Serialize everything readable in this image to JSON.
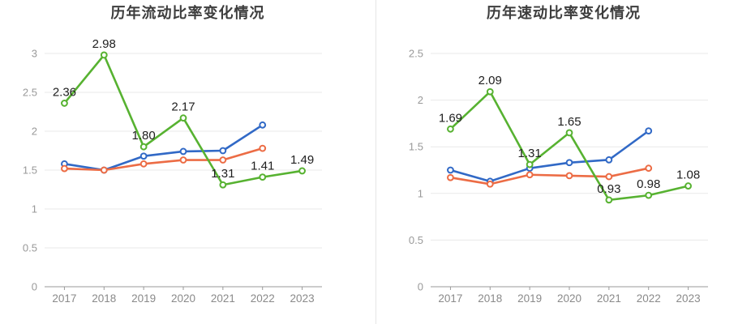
{
  "page": {
    "background": "#ffffff",
    "divider_color": "#e5e5e5"
  },
  "chart_data": [
    {
      "type": "line",
      "title": "历年流动比率变化情况",
      "categories": [
        "2017",
        "2018",
        "2019",
        "2020",
        "2021",
        "2022",
        "2023"
      ],
      "xlabel": "",
      "ylabel": "",
      "ylim": [
        0,
        3
      ],
      "yticks": [
        0,
        0.5,
        1,
        1.5,
        2,
        2.5,
        3
      ],
      "grid": true,
      "legend_position": "none",
      "series": [
        {
          "name": "blue-line",
          "color": "#3169c6",
          "values": [
            1.58,
            1.5,
            1.68,
            1.74,
            1.75,
            2.08,
            null
          ],
          "show_labels": false,
          "labels": []
        },
        {
          "name": "orange-line",
          "color": "#ec6c45",
          "values": [
            1.52,
            1.5,
            1.58,
            1.63,
            1.63,
            1.78,
            null
          ],
          "show_labels": false,
          "labels": []
        },
        {
          "name": "green-line",
          "color": "#57b231",
          "values": [
            2.36,
            2.98,
            1.8,
            2.17,
            1.31,
            1.41,
            1.49
          ],
          "show_labels": true,
          "labels": [
            "2.36",
            "2.98",
            "1.80",
            "2.17",
            "1.31",
            "1.41",
            "1.49"
          ]
        }
      ],
      "style": {
        "grid_color": "#e9e9e9",
        "axis_line_color": "#9a9a9a",
        "axis_label_color": "#8a8a8a",
        "data_label_color": "#202020",
        "title_color": "#3d3d3d"
      }
    },
    {
      "type": "line",
      "title": "历年速动比率变化情况",
      "categories": [
        "2017",
        "2018",
        "2019",
        "2020",
        "2021",
        "2022",
        "2023"
      ],
      "xlabel": "",
      "ylabel": "",
      "ylim": [
        0,
        2.5
      ],
      "yticks": [
        0,
        0.5,
        1,
        1.5,
        2,
        2.5
      ],
      "grid": true,
      "legend_position": "none",
      "series": [
        {
          "name": "blue-line",
          "color": "#3169c6",
          "values": [
            1.25,
            1.13,
            1.27,
            1.33,
            1.36,
            1.67,
            null
          ],
          "show_labels": false,
          "labels": []
        },
        {
          "name": "orange-line",
          "color": "#ec6c45",
          "values": [
            1.17,
            1.1,
            1.2,
            1.19,
            1.18,
            1.27,
            null
          ],
          "show_labels": false,
          "labels": []
        },
        {
          "name": "green-line",
          "color": "#57b231",
          "values": [
            1.69,
            2.09,
            1.31,
            1.65,
            0.93,
            0.98,
            1.08
          ],
          "show_labels": true,
          "labels": [
            "1.69",
            "2.09",
            "1.31",
            "1.65",
            "0.93",
            "0.98",
            "1.08"
          ]
        }
      ],
      "style": {
        "grid_color": "#e9e9e9",
        "axis_line_color": "#9a9a9a",
        "axis_label_color": "#8a8a8a",
        "data_label_color": "#202020",
        "title_color": "#3d3d3d"
      }
    }
  ]
}
